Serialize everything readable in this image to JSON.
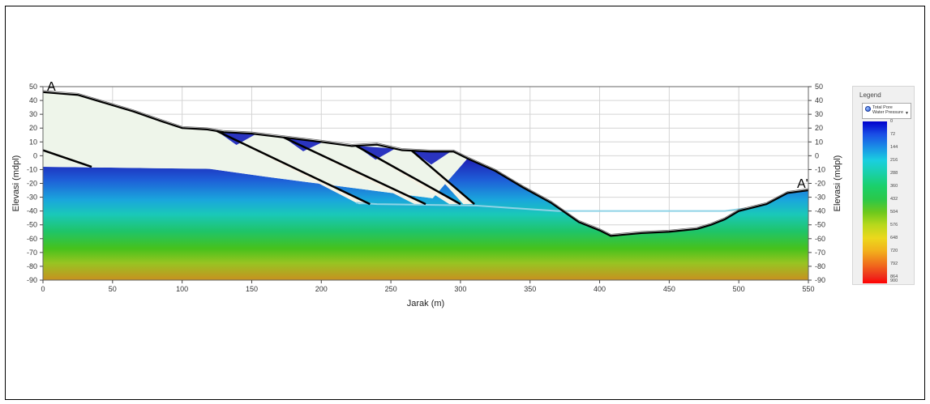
{
  "chart_data": {
    "type": "area",
    "xlabel": "Jarak (m)",
    "ylabel": "Elevasi (mdpl)",
    "xlim": [
      0,
      550
    ],
    "ylim": [
      -90,
      50
    ],
    "x_ticks": [
      "0",
      "50",
      "100",
      "150",
      "200",
      "250",
      "300",
      "350",
      "400",
      "450",
      "500",
      "550"
    ],
    "y_ticks": [
      "50",
      "40",
      "30",
      "20",
      "10",
      "0",
      "-10",
      "-20",
      "-30",
      "-40",
      "-50",
      "-60",
      "-70",
      "-80",
      "-90"
    ],
    "grid": true,
    "section_labels": {
      "start": "A",
      "end": "A'"
    },
    "ground_surface": {
      "x": [
        0,
        12,
        25,
        45,
        65,
        85,
        100,
        118,
        130,
        150,
        175,
        200,
        222,
        240,
        258,
        278,
        295,
        305,
        325,
        345,
        365,
        385,
        400,
        408,
        430,
        450,
        470,
        480,
        490,
        500,
        520,
        535,
        550
      ],
      "y": [
        46,
        45,
        44,
        38,
        32,
        25,
        20,
        19,
        17,
        16,
        13,
        10,
        7,
        8,
        4,
        3,
        3,
        -2,
        -11,
        -23,
        -34,
        -48,
        -54,
        -58,
        -56,
        -55,
        -53,
        -50,
        -46,
        -40,
        -35,
        -27,
        -25
      ]
    },
    "water_table": {
      "x": [
        225,
        240,
        310,
        370,
        490,
        505
      ],
      "y": [
        -34,
        -35,
        -36,
        -40,
        -40,
        -38
      ]
    },
    "dump_layers": {
      "x_start": [
        125,
        173,
        225,
        265
      ],
      "x_end": [
        235,
        275,
        300,
        310
      ]
    },
    "legend": {
      "title": "Legend",
      "variable": "Total Pore Water Pressure",
      "labels": [
        "0",
        "72",
        "144",
        "216",
        "288",
        "360",
        "432",
        "504",
        "576",
        "648",
        "720",
        "792",
        "864",
        "900"
      ],
      "range": [
        0,
        900
      ],
      "colors": [
        "#0000cc",
        "#1a4fe6",
        "#1aa3e6",
        "#1acfc8",
        "#1ad08a",
        "#1cc84c",
        "#3ec21c",
        "#8cd21c",
        "#cde01c",
        "#f0d21c",
        "#f2a01c",
        "#f06a1c",
        "#ee2c1c",
        "#ff0000"
      ]
    },
    "colors": {
      "grid": "#d4d4d4",
      "waste_fill": "#eef5ea",
      "dump_fill": "#f7f3e4",
      "saturated_top": "#2a38c8",
      "saturated_bottom": "#c8961e",
      "surface_line": "#000000",
      "water_line": "#8fd3e6"
    }
  }
}
